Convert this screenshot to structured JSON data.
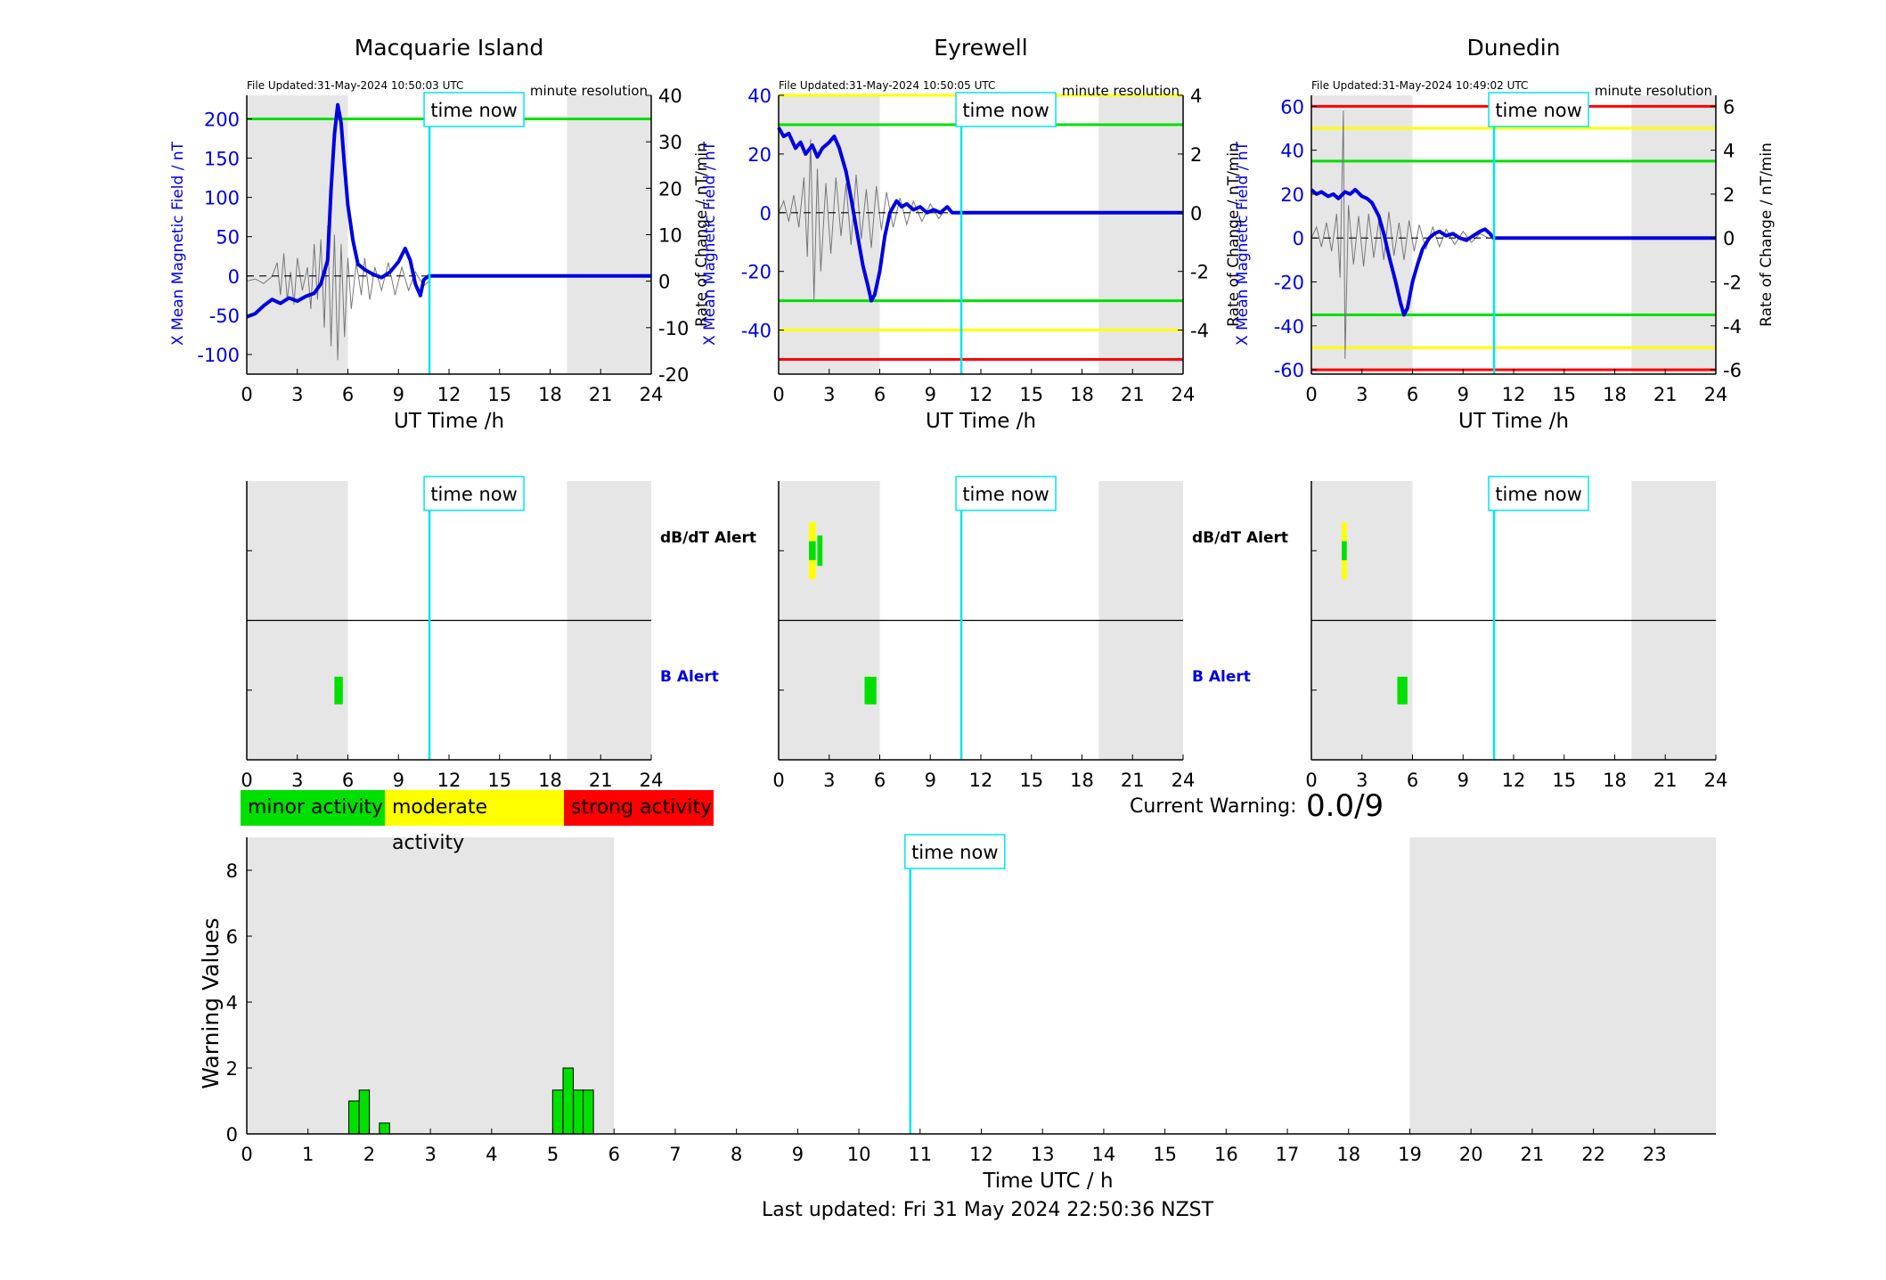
{
  "stations": [
    {
      "name": "Macquarie Island",
      "file_updated": "File Updated:31-May-2024 10:50:03 UTC",
      "resolution": "minute resolution",
      "xlabel": "UT Time /h",
      "ylabel_left": "X Mean Magnetic Field / nT",
      "ylabel_right": "Rate of Change / nT/min",
      "left_ylim": [
        -125,
        230
      ],
      "left_ticks": [
        -100,
        -50,
        0,
        50,
        100,
        150,
        200
      ],
      "right_ylim": [
        -20,
        40
      ],
      "right_ticks": [
        -20,
        -10,
        0,
        10,
        20,
        30,
        40
      ],
      "threshold_lines": [
        {
          "value": 200,
          "color": "#00e000"
        }
      ],
      "field_series": [
        [
          0,
          -52
        ],
        [
          0.5,
          -48
        ],
        [
          1,
          -38
        ],
        [
          1.5,
          -30
        ],
        [
          2,
          -35
        ],
        [
          2.5,
          -28
        ],
        [
          3,
          -32
        ],
        [
          3.5,
          -26
        ],
        [
          4,
          -22
        ],
        [
          4.4,
          -10
        ],
        [
          4.8,
          20
        ],
        [
          5.0,
          110
        ],
        [
          5.2,
          180
        ],
        [
          5.4,
          218
        ],
        [
          5.6,
          195
        ],
        [
          5.8,
          140
        ],
        [
          6.0,
          90
        ],
        [
          6.3,
          45
        ],
        [
          6.6,
          15
        ],
        [
          7,
          8
        ],
        [
          7.5,
          2
        ],
        [
          8,
          -2
        ],
        [
          8.5,
          5
        ],
        [
          9,
          18
        ],
        [
          9.4,
          35
        ],
        [
          9.7,
          20
        ],
        [
          10,
          -10
        ],
        [
          10.3,
          -25
        ],
        [
          10.5,
          -5
        ],
        [
          10.8,
          0
        ],
        [
          24,
          0
        ]
      ],
      "rate_series": [
        [
          0,
          0
        ],
        [
          0.5,
          0.5
        ],
        [
          1,
          -0.5
        ],
        [
          1.5,
          1
        ],
        [
          1.8,
          4
        ],
        [
          2,
          -3
        ],
        [
          2.2,
          6
        ],
        [
          2.4,
          -4
        ],
        [
          2.6,
          2
        ],
        [
          2.8,
          -5
        ],
        [
          3,
          5
        ],
        [
          3.3,
          -2
        ],
        [
          3.6,
          3
        ],
        [
          3.8,
          -6
        ],
        [
          4,
          8
        ],
        [
          4.2,
          -4
        ],
        [
          4.4,
          9
        ],
        [
          4.6,
          -10
        ],
        [
          4.8,
          12
        ],
        [
          5.0,
          -14
        ],
        [
          5.2,
          10
        ],
        [
          5.4,
          -17
        ],
        [
          5.6,
          8
        ],
        [
          5.8,
          -12
        ],
        [
          6.0,
          5
        ],
        [
          6.2,
          -6
        ],
        [
          6.5,
          4
        ],
        [
          6.8,
          -3
        ],
        [
          7,
          5
        ],
        [
          7.3,
          -4
        ],
        [
          7.6,
          3
        ],
        [
          8,
          -2
        ],
        [
          8.4,
          4
        ],
        [
          8.8,
          -3
        ],
        [
          9.2,
          3
        ],
        [
          9.6,
          -2
        ],
        [
          10,
          2
        ],
        [
          10.5,
          -1
        ],
        [
          10.8,
          0
        ]
      ],
      "db_alert_bars": [],
      "b_alert_bars": [
        {
          "start": 5.2,
          "end": 5.7,
          "segments": [
            "#00e000"
          ]
        }
      ]
    },
    {
      "name": "Eyrewell",
      "file_updated": "File Updated:31-May-2024 10:50:05 UTC",
      "resolution": "minute resolution",
      "xlabel": "UT Time /h",
      "ylabel_left": "X Mean Magnetic Field / nT",
      "ylabel_right": "Rate of Change / nT/min",
      "left_ylim": [
        -55,
        40
      ],
      "left_ticks": [
        -40,
        -20,
        0,
        20,
        40
      ],
      "right_ylim": [
        -5.5,
        4
      ],
      "right_ticks": [
        -4,
        -2,
        0,
        2,
        4
      ],
      "threshold_lines": [
        {
          "value": 40,
          "color": "#ffff00"
        },
        {
          "value": 30,
          "color": "#00e000"
        },
        {
          "value": -30,
          "color": "#00e000"
        },
        {
          "value": -40,
          "color": "#ffff00"
        },
        {
          "value": -50,
          "color": "#ff0000"
        }
      ],
      "field_series": [
        [
          0,
          29
        ],
        [
          0.3,
          26
        ],
        [
          0.6,
          27
        ],
        [
          1,
          22
        ],
        [
          1.3,
          24
        ],
        [
          1.6,
          20
        ],
        [
          2,
          23
        ],
        [
          2.3,
          19
        ],
        [
          2.6,
          22
        ],
        [
          3,
          24
        ],
        [
          3.3,
          26
        ],
        [
          3.6,
          22
        ],
        [
          4,
          14
        ],
        [
          4.3,
          5
        ],
        [
          4.6,
          -5
        ],
        [
          5,
          -18
        ],
        [
          5.3,
          -25
        ],
        [
          5.5,
          -30
        ],
        [
          5.7,
          -28
        ],
        [
          6,
          -20
        ],
        [
          6.3,
          -8
        ],
        [
          6.6,
          0
        ],
        [
          7,
          4
        ],
        [
          7.3,
          2
        ],
        [
          7.6,
          3
        ],
        [
          8,
          1
        ],
        [
          8.4,
          2
        ],
        [
          8.8,
          0
        ],
        [
          9.2,
          1
        ],
        [
          9.6,
          0
        ],
        [
          10,
          2
        ],
        [
          10.3,
          0
        ],
        [
          24,
          0
        ]
      ],
      "rate_series": [
        [
          0,
          0
        ],
        [
          0.3,
          0.4
        ],
        [
          0.6,
          -0.3
        ],
        [
          0.9,
          0.6
        ],
        [
          1.2,
          -0.5
        ],
        [
          1.5,
          1.2
        ],
        [
          1.7,
          -1.5
        ],
        [
          1.9,
          2.5
        ],
        [
          2.1,
          -3
        ],
        [
          2.3,
          1.5
        ],
        [
          2.5,
          -2
        ],
        [
          2.8,
          1
        ],
        [
          3.1,
          -1.4
        ],
        [
          3.4,
          1.2
        ],
        [
          3.7,
          -0.8
        ],
        [
          4,
          1
        ],
        [
          4.3,
          -1.1
        ],
        [
          4.6,
          1.3
        ],
        [
          4.9,
          -0.9
        ],
        [
          5.2,
          0.8
        ],
        [
          5.5,
          -1.2
        ],
        [
          5.8,
          0.9
        ],
        [
          6.1,
          -0.6
        ],
        [
          6.4,
          0.7
        ],
        [
          6.8,
          -0.5
        ],
        [
          7.2,
          0.5
        ],
        [
          7.6,
          -0.4
        ],
        [
          8,
          0.4
        ],
        [
          8.5,
          -0.3
        ],
        [
          9,
          0.3
        ],
        [
          9.5,
          -0.2
        ],
        [
          10,
          0.2
        ],
        [
          10.3,
          0
        ]
      ],
      "db_alert_bars": [
        {
          "start": 1.8,
          "end": 2.2,
          "segments": [
            "#ffff00",
            "#00e000",
            "#ffff00"
          ]
        },
        {
          "start": 2.3,
          "end": 2.6,
          "segments": [
            "#00e000"
          ]
        }
      ],
      "b_alert_bars": [
        {
          "start": 5.1,
          "end": 5.8,
          "segments": [
            "#00e000"
          ]
        }
      ]
    },
    {
      "name": "Dunedin",
      "file_updated": "File Updated:31-May-2024 10:49:02 UTC",
      "resolution": "minute resolution",
      "xlabel": "UT Time /h",
      "ylabel_left": "X Mean Magnetic Field / nT",
      "ylabel_right": "Rate of Change / nT/min",
      "left_ylim": [
        -62,
        65
      ],
      "left_ticks": [
        -60,
        -40,
        -20,
        0,
        20,
        40,
        60
      ],
      "right_ylim": [
        -6.2,
        6.5
      ],
      "right_ticks": [
        -6,
        -4,
        -2,
        0,
        2,
        4,
        6
      ],
      "threshold_lines": [
        {
          "value": 60,
          "color": "#ff0000"
        },
        {
          "value": 50,
          "color": "#ffff00"
        },
        {
          "value": 35,
          "color": "#00e000"
        },
        {
          "value": -35,
          "color": "#00e000"
        },
        {
          "value": -50,
          "color": "#ffff00"
        },
        {
          "value": -60,
          "color": "#ff0000"
        }
      ],
      "field_series": [
        [
          0,
          22
        ],
        [
          0.3,
          20
        ],
        [
          0.6,
          21
        ],
        [
          1,
          19
        ],
        [
          1.3,
          20
        ],
        [
          1.6,
          18
        ],
        [
          2,
          21
        ],
        [
          2.3,
          20
        ],
        [
          2.6,
          22
        ],
        [
          3,
          19
        ],
        [
          3.3,
          18
        ],
        [
          3.6,
          16
        ],
        [
          4,
          10
        ],
        [
          4.3,
          2
        ],
        [
          4.6,
          -8
        ],
        [
          5,
          -20
        ],
        [
          5.3,
          -30
        ],
        [
          5.5,
          -35
        ],
        [
          5.7,
          -32
        ],
        [
          6,
          -20
        ],
        [
          6.3,
          -12
        ],
        [
          6.6,
          -5
        ],
        [
          7,
          0
        ],
        [
          7.3,
          2
        ],
        [
          7.6,
          3
        ],
        [
          8,
          1
        ],
        [
          8.4,
          2
        ],
        [
          8.8,
          0
        ],
        [
          9.2,
          -1
        ],
        [
          9.6,
          1
        ],
        [
          10,
          3
        ],
        [
          10.3,
          4
        ],
        [
          10.6,
          2
        ],
        [
          10.8,
          0
        ],
        [
          24,
          0
        ]
      ],
      "rate_series": [
        [
          0,
          0
        ],
        [
          0.3,
          0.5
        ],
        [
          0.6,
          -0.4
        ],
        [
          0.9,
          0.7
        ],
        [
          1.2,
          -0.6
        ],
        [
          1.5,
          1.1
        ],
        [
          1.7,
          -1.8
        ],
        [
          1.9,
          5.8
        ],
        [
          2.0,
          -5.5
        ],
        [
          2.2,
          1.5
        ],
        [
          2.5,
          -1.2
        ],
        [
          2.8,
          1
        ],
        [
          3.1,
          -1.3
        ],
        [
          3.4,
          1.1
        ],
        [
          3.7,
          -0.9
        ],
        [
          4,
          0.8
        ],
        [
          4.3,
          -1
        ],
        [
          4.6,
          1.2
        ],
        [
          4.9,
          -0.8
        ],
        [
          5.2,
          0.7
        ],
        [
          5.5,
          -1
        ],
        [
          5.8,
          0.8
        ],
        [
          6.1,
          -0.6
        ],
        [
          6.4,
          0.6
        ],
        [
          6.8,
          -0.5
        ],
        [
          7.2,
          0.5
        ],
        [
          7.6,
          -0.4
        ],
        [
          8,
          0.4
        ],
        [
          8.5,
          -0.3
        ],
        [
          9,
          0.3
        ],
        [
          9.5,
          -0.2
        ],
        [
          10,
          0.2
        ],
        [
          10.5,
          0
        ]
      ],
      "db_alert_bars": [
        {
          "start": 1.8,
          "end": 2.1,
          "segments": [
            "#ffff00",
            "#00e000",
            "#ffff00"
          ]
        }
      ],
      "b_alert_bars": [
        {
          "start": 5.1,
          "end": 5.7,
          "segments": [
            "#00e000"
          ]
        }
      ]
    }
  ],
  "time_now": 10.84,
  "time_now_label": "time now",
  "shaded_intervals": [
    [
      0,
      6
    ],
    [
      19,
      24
    ]
  ],
  "alert_labels": {
    "dbdt": "dB/dT Alert",
    "b": "B Alert"
  },
  "x_ticks_station": [
    0,
    3,
    6,
    9,
    12,
    15,
    18,
    21,
    24
  ],
  "legend": [
    {
      "label": "minor activity",
      "color": "#00e000"
    },
    {
      "label": "moderate activity",
      "color": "#ffff00"
    },
    {
      "label": "strong activity",
      "color": "#ff0000"
    }
  ],
  "current_warning": {
    "label": "Current Warning:",
    "value": "0.0/9"
  },
  "chart_data": {
    "type": "bar",
    "xlabel": "Time UTC / h",
    "ylabel": "Warning Values",
    "xlim": [
      0,
      24
    ],
    "ylim": [
      0,
      9
    ],
    "x_ticks": [
      0,
      1,
      2,
      3,
      4,
      5,
      6,
      7,
      8,
      9,
      10,
      11,
      12,
      13,
      14,
      15,
      16,
      17,
      18,
      19,
      20,
      21,
      22,
      23
    ],
    "y_ticks": [
      0,
      2,
      4,
      6,
      8
    ],
    "bar_color": "#00e000",
    "bars": [
      {
        "x": 1.75,
        "value": 1.0
      },
      {
        "x": 1.92,
        "value": 1.33
      },
      {
        "x": 2.25,
        "value": 0.33
      },
      {
        "x": 5.08,
        "value": 1.33
      },
      {
        "x": 5.25,
        "value": 2.0
      },
      {
        "x": 5.42,
        "value": 1.33
      },
      {
        "x": 5.58,
        "value": 1.33
      }
    ]
  },
  "last_updated": "Last updated: Fri 31 May 2024 22:50:36 NZST"
}
